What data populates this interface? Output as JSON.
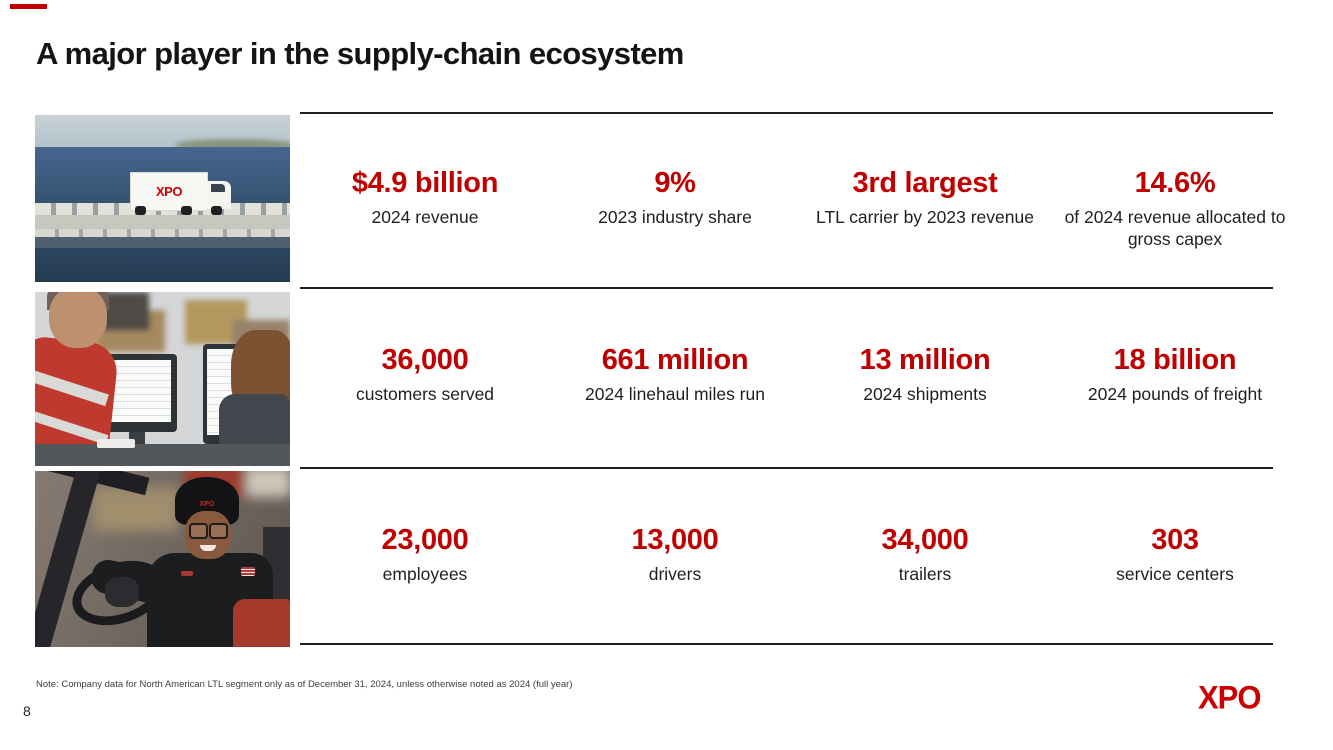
{
  "slide": {
    "title": "A major player in the supply-chain ecosystem",
    "note": "Note: Company data for North American LTL segment only as of December 31, 2024, unless otherwise noted as 2024 (full year)",
    "page_number": "8",
    "logo": "XPO"
  },
  "colors": {
    "stat_red": "#C00000",
    "logo_red": "#CC0000",
    "divider": "#1E1E1E",
    "label_text": "#1F1F1F"
  },
  "photos": {
    "truck_label": "XPO",
    "beanie_label": "XPO",
    "photo1_alt": "xpo-truck-on-causeway-bridge-over-water",
    "photo2_alt": "employees-reviewing-monitors-in-warehouse-office",
    "photo3_alt": "smiling-forklift-operator-in-warehouse"
  },
  "rows": [
    {
      "stats": [
        {
          "value": "$4.9 billion",
          "label": "2024 revenue"
        },
        {
          "value": "9%",
          "label": "2023 industry share"
        },
        {
          "value": "3rd largest",
          "label": "LTL carrier by 2023 revenue"
        },
        {
          "value": "14.6%",
          "label": "of 2024 revenue allocated to gross capex"
        }
      ]
    },
    {
      "stats": [
        {
          "value": "36,000",
          "label": "customers served"
        },
        {
          "value": "661 million",
          "label": "2024 linehaul miles run"
        },
        {
          "value": "13 million",
          "label": "2024 shipments"
        },
        {
          "value": "18 billion",
          "label": "2024 pounds of freight"
        }
      ]
    },
    {
      "stats": [
        {
          "value": "23,000",
          "label": "employees"
        },
        {
          "value": "13,000",
          "label": "drivers"
        },
        {
          "value": "34,000",
          "label": "trailers"
        },
        {
          "value": "303",
          "label": "service centers"
        }
      ]
    }
  ]
}
